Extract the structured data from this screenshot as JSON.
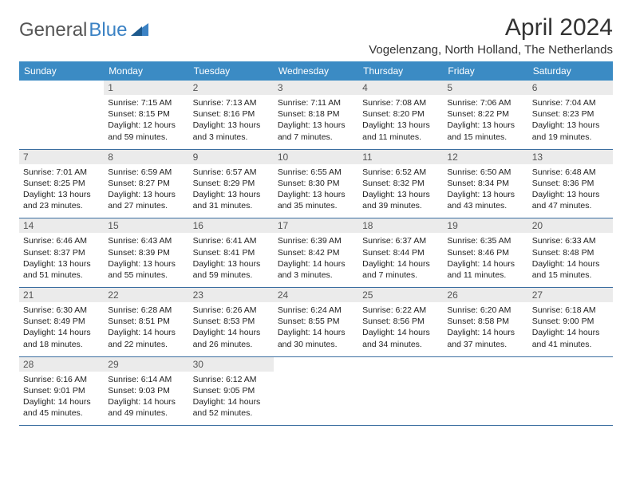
{
  "logo": {
    "text1": "General",
    "text2": "Blue"
  },
  "title": "April 2024",
  "location": "Vogelenzang, North Holland, The Netherlands",
  "colors": {
    "header_bg": "#3b8bc4",
    "header_text": "#ffffff",
    "daynum_bg": "#ebebeb",
    "border": "#3b6ea0",
    "logo_blue": "#3b82c4",
    "logo_gray": "#555555"
  },
  "day_headers": [
    "Sunday",
    "Monday",
    "Tuesday",
    "Wednesday",
    "Thursday",
    "Friday",
    "Saturday"
  ],
  "weeks": [
    [
      {
        "n": "",
        "info": [
          "",
          "",
          "",
          ""
        ]
      },
      {
        "n": "1",
        "info": [
          "Sunrise: 7:15 AM",
          "Sunset: 8:15 PM",
          "Daylight: 12 hours",
          "and 59 minutes."
        ]
      },
      {
        "n": "2",
        "info": [
          "Sunrise: 7:13 AM",
          "Sunset: 8:16 PM",
          "Daylight: 13 hours",
          "and 3 minutes."
        ]
      },
      {
        "n": "3",
        "info": [
          "Sunrise: 7:11 AM",
          "Sunset: 8:18 PM",
          "Daylight: 13 hours",
          "and 7 minutes."
        ]
      },
      {
        "n": "4",
        "info": [
          "Sunrise: 7:08 AM",
          "Sunset: 8:20 PM",
          "Daylight: 13 hours",
          "and 11 minutes."
        ]
      },
      {
        "n": "5",
        "info": [
          "Sunrise: 7:06 AM",
          "Sunset: 8:22 PM",
          "Daylight: 13 hours",
          "and 15 minutes."
        ]
      },
      {
        "n": "6",
        "info": [
          "Sunrise: 7:04 AM",
          "Sunset: 8:23 PM",
          "Daylight: 13 hours",
          "and 19 minutes."
        ]
      }
    ],
    [
      {
        "n": "7",
        "info": [
          "Sunrise: 7:01 AM",
          "Sunset: 8:25 PM",
          "Daylight: 13 hours",
          "and 23 minutes."
        ]
      },
      {
        "n": "8",
        "info": [
          "Sunrise: 6:59 AM",
          "Sunset: 8:27 PM",
          "Daylight: 13 hours",
          "and 27 minutes."
        ]
      },
      {
        "n": "9",
        "info": [
          "Sunrise: 6:57 AM",
          "Sunset: 8:29 PM",
          "Daylight: 13 hours",
          "and 31 minutes."
        ]
      },
      {
        "n": "10",
        "info": [
          "Sunrise: 6:55 AM",
          "Sunset: 8:30 PM",
          "Daylight: 13 hours",
          "and 35 minutes."
        ]
      },
      {
        "n": "11",
        "info": [
          "Sunrise: 6:52 AM",
          "Sunset: 8:32 PM",
          "Daylight: 13 hours",
          "and 39 minutes."
        ]
      },
      {
        "n": "12",
        "info": [
          "Sunrise: 6:50 AM",
          "Sunset: 8:34 PM",
          "Daylight: 13 hours",
          "and 43 minutes."
        ]
      },
      {
        "n": "13",
        "info": [
          "Sunrise: 6:48 AM",
          "Sunset: 8:36 PM",
          "Daylight: 13 hours",
          "and 47 minutes."
        ]
      }
    ],
    [
      {
        "n": "14",
        "info": [
          "Sunrise: 6:46 AM",
          "Sunset: 8:37 PM",
          "Daylight: 13 hours",
          "and 51 minutes."
        ]
      },
      {
        "n": "15",
        "info": [
          "Sunrise: 6:43 AM",
          "Sunset: 8:39 PM",
          "Daylight: 13 hours",
          "and 55 minutes."
        ]
      },
      {
        "n": "16",
        "info": [
          "Sunrise: 6:41 AM",
          "Sunset: 8:41 PM",
          "Daylight: 13 hours",
          "and 59 minutes."
        ]
      },
      {
        "n": "17",
        "info": [
          "Sunrise: 6:39 AM",
          "Sunset: 8:42 PM",
          "Daylight: 14 hours",
          "and 3 minutes."
        ]
      },
      {
        "n": "18",
        "info": [
          "Sunrise: 6:37 AM",
          "Sunset: 8:44 PM",
          "Daylight: 14 hours",
          "and 7 minutes."
        ]
      },
      {
        "n": "19",
        "info": [
          "Sunrise: 6:35 AM",
          "Sunset: 8:46 PM",
          "Daylight: 14 hours",
          "and 11 minutes."
        ]
      },
      {
        "n": "20",
        "info": [
          "Sunrise: 6:33 AM",
          "Sunset: 8:48 PM",
          "Daylight: 14 hours",
          "and 15 minutes."
        ]
      }
    ],
    [
      {
        "n": "21",
        "info": [
          "Sunrise: 6:30 AM",
          "Sunset: 8:49 PM",
          "Daylight: 14 hours",
          "and 18 minutes."
        ]
      },
      {
        "n": "22",
        "info": [
          "Sunrise: 6:28 AM",
          "Sunset: 8:51 PM",
          "Daylight: 14 hours",
          "and 22 minutes."
        ]
      },
      {
        "n": "23",
        "info": [
          "Sunrise: 6:26 AM",
          "Sunset: 8:53 PM",
          "Daylight: 14 hours",
          "and 26 minutes."
        ]
      },
      {
        "n": "24",
        "info": [
          "Sunrise: 6:24 AM",
          "Sunset: 8:55 PM",
          "Daylight: 14 hours",
          "and 30 minutes."
        ]
      },
      {
        "n": "25",
        "info": [
          "Sunrise: 6:22 AM",
          "Sunset: 8:56 PM",
          "Daylight: 14 hours",
          "and 34 minutes."
        ]
      },
      {
        "n": "26",
        "info": [
          "Sunrise: 6:20 AM",
          "Sunset: 8:58 PM",
          "Daylight: 14 hours",
          "and 37 minutes."
        ]
      },
      {
        "n": "27",
        "info": [
          "Sunrise: 6:18 AM",
          "Sunset: 9:00 PM",
          "Daylight: 14 hours",
          "and 41 minutes."
        ]
      }
    ],
    [
      {
        "n": "28",
        "info": [
          "Sunrise: 6:16 AM",
          "Sunset: 9:01 PM",
          "Daylight: 14 hours",
          "and 45 minutes."
        ]
      },
      {
        "n": "29",
        "info": [
          "Sunrise: 6:14 AM",
          "Sunset: 9:03 PM",
          "Daylight: 14 hours",
          "and 49 minutes."
        ]
      },
      {
        "n": "30",
        "info": [
          "Sunrise: 6:12 AM",
          "Sunset: 9:05 PM",
          "Daylight: 14 hours",
          "and 52 minutes."
        ]
      },
      {
        "n": "",
        "info": [
          "",
          "",
          "",
          ""
        ]
      },
      {
        "n": "",
        "info": [
          "",
          "",
          "",
          ""
        ]
      },
      {
        "n": "",
        "info": [
          "",
          "",
          "",
          ""
        ]
      },
      {
        "n": "",
        "info": [
          "",
          "",
          "",
          ""
        ]
      }
    ]
  ]
}
